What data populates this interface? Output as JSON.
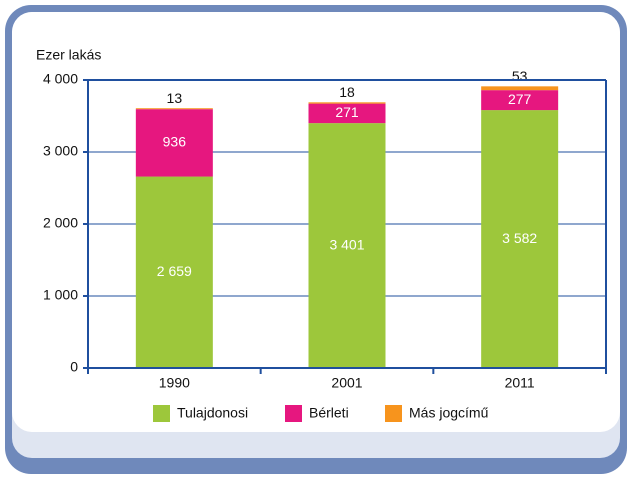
{
  "chart_data": {
    "type": "stacked-bar",
    "y_label": "Ezer lakás",
    "categories": [
      "1990",
      "2001",
      "2011"
    ],
    "series": [
      {
        "name": "Tulajdonosi",
        "color": "#9dc73b",
        "values": [
          2659,
          3401,
          3582
        ],
        "value_labels": [
          "2 659",
          "3 401",
          "3 582"
        ]
      },
      {
        "name": "Bérleti",
        "color": "#e6177f",
        "values": [
          936,
          271,
          277
        ]
      },
      {
        "name": "Más jogcímű",
        "color": "#f7941d",
        "values": [
          13,
          18,
          53
        ]
      }
    ],
    "ylim": [
      0,
      4000
    ],
    "yticks": [
      0,
      {
        "value": 1000,
        "label": "1 000"
      },
      {
        "value": 2000,
        "label": "2 000"
      },
      {
        "value": 3000,
        "label": "3 000"
      },
      {
        "value": 4000,
        "label": "4 000"
      }
    ],
    "grid": true
  }
}
